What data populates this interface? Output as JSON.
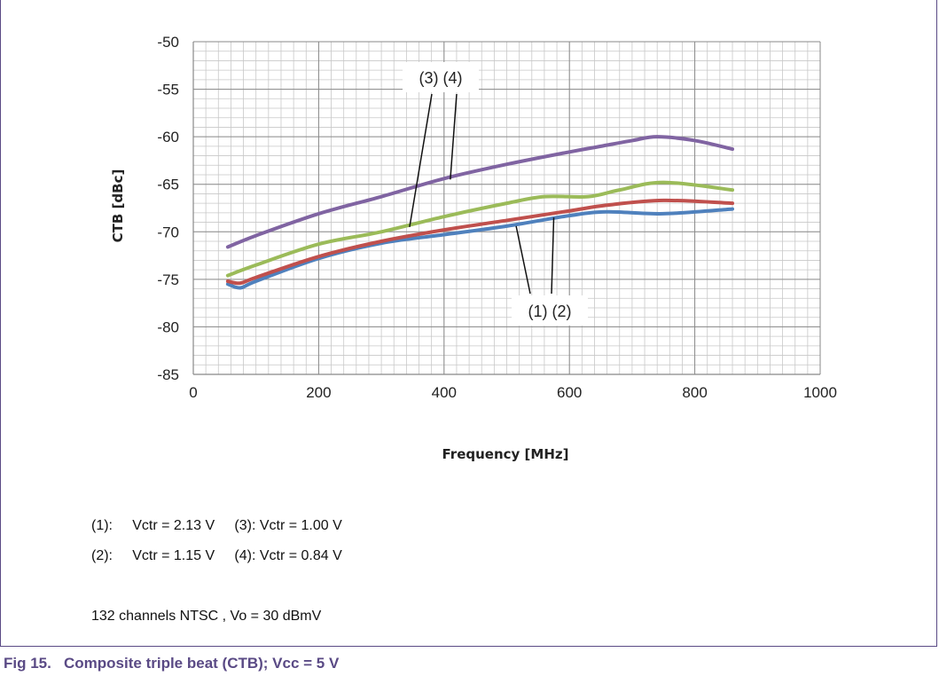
{
  "chart_data": {
    "type": "line",
    "title": "",
    "xlabel": "Frequency [MHz]",
    "ylabel": "CTB [dBc]",
    "xlim": [
      0,
      1000
    ],
    "ylim": [
      -85,
      -50
    ],
    "xticks": [
      "0",
      "200",
      "400",
      "600",
      "800",
      "1000"
    ],
    "yticks": [
      "-50",
      "-55",
      "-60",
      "-65",
      "-70",
      "-75",
      "-80",
      "-85"
    ],
    "grid": true,
    "colors": [
      "#4f81bd",
      "#c0504d",
      "#9bbb59",
      "#8064a2"
    ],
    "series": [
      {
        "x": [
          55,
          75,
          100,
          200,
          300,
          400,
          500,
          600,
          660,
          750,
          860
        ],
        "y": [
          -75.5,
          -75.9,
          -75.2,
          -72.8,
          -71.2,
          -70.3,
          -69.4,
          -68.3,
          -67.9,
          -68.1,
          -67.6
        ]
      },
      {
        "x": [
          55,
          75,
          100,
          200,
          300,
          400,
          500,
          600,
          660,
          750,
          860
        ],
        "y": [
          -75.2,
          -75.4,
          -74.8,
          -72.6,
          -71.0,
          -69.8,
          -68.8,
          -67.8,
          -67.2,
          -66.7,
          -67.0
        ]
      },
      {
        "x": [
          55,
          100,
          200,
          300,
          400,
          500,
          560,
          630,
          680,
          750,
          860
        ],
        "y": [
          -74.6,
          -73.5,
          -71.3,
          -70.0,
          -68.4,
          -67.0,
          -66.3,
          -66.3,
          -65.6,
          -64.8,
          -65.6
        ]
      },
      {
        "x": [
          55,
          100,
          200,
          300,
          400,
          500,
          600,
          650,
          700,
          740,
          800,
          860
        ],
        "y": [
          -71.6,
          -70.4,
          -68.1,
          -66.3,
          -64.4,
          -62.9,
          -61.6,
          -61.0,
          -60.4,
          -60.0,
          -60.4,
          -61.3
        ]
      }
    ],
    "annotations": [
      {
        "text": "(3) (4)",
        "pointers": [
          {
            "x": 345,
            "y": -69.5
          },
          {
            "x": 410,
            "y": -64.5
          }
        ]
      },
      {
        "text": "(1) (2)",
        "pointers": [
          {
            "x": 515,
            "y": -69.4
          },
          {
            "x": 575,
            "y": -68.5
          }
        ]
      }
    ]
  },
  "notes": {
    "line1": "(1):     Vctr = 2.13 V     (3): Vctr = 1.00 V",
    "line2": "(2):     Vctr = 1.15 V     (4): Vctr = 0.84 V",
    "line3": "132 channels NTSC , Vo = 30 dBmV"
  },
  "caption": "Fig 15.   Composite triple beat (CTB); Vcc = 5 V"
}
